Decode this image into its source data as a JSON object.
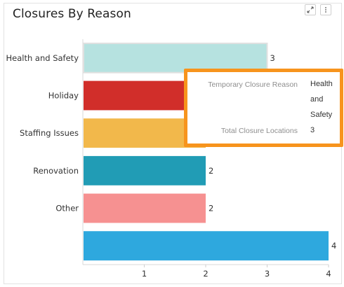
{
  "title": "Closures By Reason",
  "icons": {
    "expand": "expand-icon",
    "more": "more-vertical-icon"
  },
  "chart_data": {
    "type": "bar",
    "orientation": "horizontal",
    "title": "Closures By Reason",
    "categories": [
      "Health and Safety",
      "Holiday",
      "Staffing Issues",
      "Renovation",
      "Other",
      ""
    ],
    "values": [
      3,
      2,
      2,
      2,
      2,
      4
    ],
    "colors": [
      "#b6e2e0",
      "#d12e2a",
      "#f2b84b",
      "#219cb5",
      "#f69191",
      "#2ea8de"
    ],
    "xlim": [
      0,
      4
    ],
    "xticks": [
      1,
      2,
      3,
      4
    ],
    "value_labels": [
      "3",
      "",
      "",
      "2",
      "2",
      "4"
    ],
    "selected_index": 0,
    "grid": false,
    "legend": "none"
  },
  "tooltip": {
    "rows": [
      {
        "key": "Temporary Closure Reason",
        "value": "Health and Safety"
      },
      {
        "key": "Total Closure Locations",
        "value": "3"
      }
    ]
  }
}
